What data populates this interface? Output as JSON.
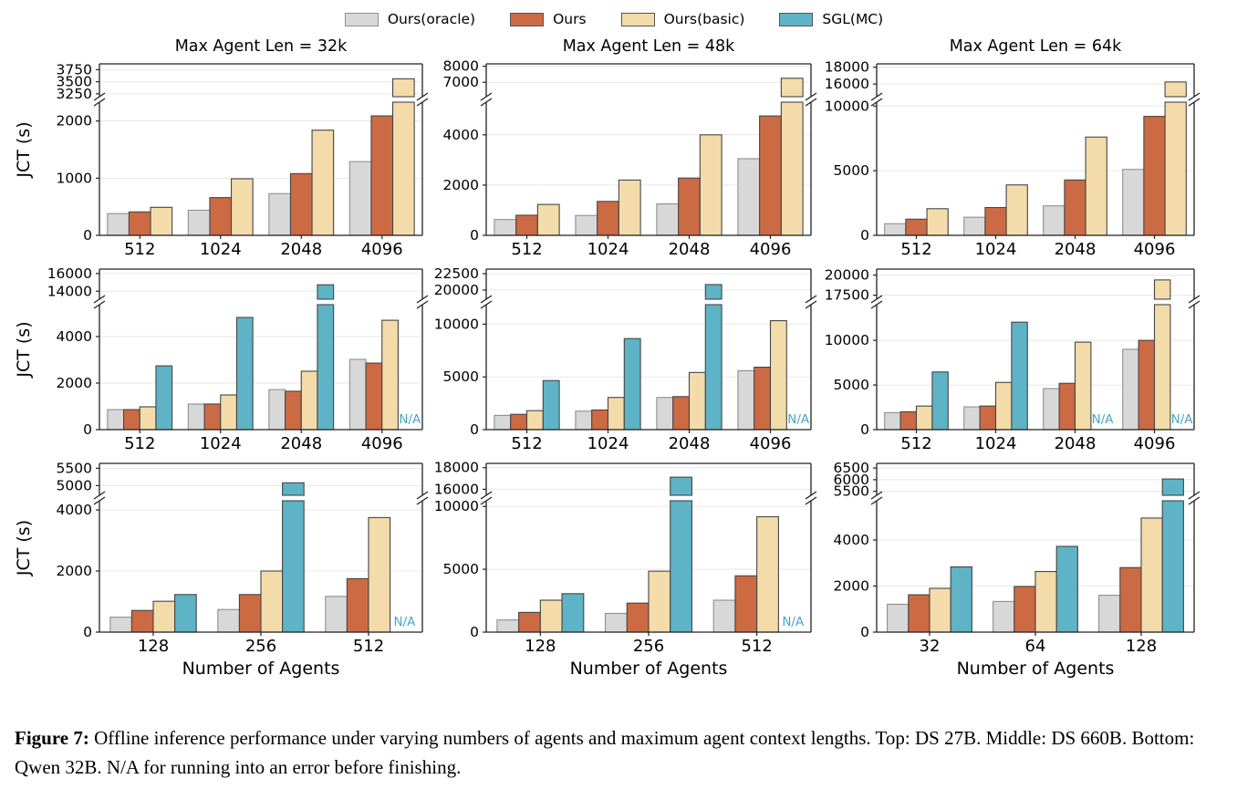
{
  "legend": [
    {
      "label": "Ours(oracle)",
      "color": "#d8d8d8",
      "edge": "#8f8f8f"
    },
    {
      "label": "Ours",
      "color": "#cc6a44",
      "edge": "#454545"
    },
    {
      "label": "Ours(basic)",
      "color": "#f4dcaa",
      "edge": "#454545"
    },
    {
      "label": "SGL(MC)",
      "color": "#5fb3c6",
      "edge": "#454545"
    }
  ],
  "na_label": "N/A",
  "na_color": "#46a8c6",
  "caption": {
    "label": "Figure 7:",
    "text": "Offline inference performance under varying numbers of agents and maximum agent context lengths. Top: DS 27B. Middle: DS 660B. Bottom: Qwen 32B. N/A for running into an error before finishing."
  },
  "chart_data": [
    {
      "type": "bar",
      "title": "Max Agent Len = 32k",
      "ylabel": "JCT (s)",
      "xlabel": "",
      "categories": [
        "512",
        "1024",
        "2048",
        "4096"
      ],
      "series": [
        {
          "name": "Ours(oracle)",
          "values": [
            380,
            440,
            730,
            1290
          ]
        },
        {
          "name": "Ours",
          "values": [
            410,
            660,
            1080,
            2090
          ]
        },
        {
          "name": "Ours(basic)",
          "values": [
            490,
            990,
            1840,
            3560
          ]
        }
      ],
      "axis": {
        "lower_max": 2330,
        "lower_ticks": [
          0,
          1000,
          2000
        ],
        "upper_min": 3190,
        "upper_max": 3870,
        "upper_ticks": [
          3250,
          3500,
          3750
        ]
      }
    },
    {
      "type": "bar",
      "title": "Max Agent Len = 48k",
      "ylabel": "",
      "xlabel": "",
      "categories": [
        "512",
        "1024",
        "2048",
        "4096"
      ],
      "series": [
        {
          "name": "Ours(oracle)",
          "values": [
            630,
            790,
            1250,
            3050
          ]
        },
        {
          "name": "Ours",
          "values": [
            800,
            1350,
            2280,
            4750
          ]
        },
        {
          "name": "Ours(basic)",
          "values": [
            1230,
            2200,
            4000,
            7250
          ]
        }
      ],
      "axis": {
        "lower_max": 5300,
        "lower_ticks": [
          0,
          2000,
          4000
        ],
        "upper_min": 6100,
        "upper_max": 8150,
        "upper_ticks": [
          7000,
          8000
        ]
      }
    },
    {
      "type": "bar",
      "title": "Max Agent Len = 64k",
      "ylabel": "",
      "xlabel": "",
      "categories": [
        "512",
        "1024",
        "2048",
        "4096"
      ],
      "series": [
        {
          "name": "Ours(oracle)",
          "values": [
            900,
            1400,
            2280,
            5100
          ]
        },
        {
          "name": "Ours",
          "values": [
            1250,
            2150,
            4280,
            9200
          ]
        },
        {
          "name": "Ours(basic)",
          "values": [
            2060,
            3900,
            7600,
            16250
          ]
        }
      ],
      "axis": {
        "lower_max": 10300,
        "lower_ticks": [
          0,
          5000,
          10000
        ],
        "upper_min": 14500,
        "upper_max": 18400,
        "upper_ticks": [
          16000,
          18000
        ]
      }
    },
    {
      "type": "bar",
      "title": "",
      "ylabel": "JCT (s)",
      "xlabel": "",
      "categories": [
        "512",
        "1024",
        "2048",
        "4096"
      ],
      "series": [
        {
          "name": "Ours(oracle)",
          "values": [
            860,
            1100,
            1720,
            3020
          ]
        },
        {
          "name": "Ours",
          "values": [
            860,
            1100,
            1650,
            2860
          ]
        },
        {
          "name": "Ours(basic)",
          "values": [
            980,
            1490,
            2510,
            4700
          ]
        },
        {
          "name": "SGL(MC)",
          "values": [
            2740,
            4820,
            14730,
            null
          ]
        }
      ],
      "axis": {
        "lower_max": 5370,
        "lower_ticks": [
          0,
          2000,
          4000
        ],
        "upper_min": 13100,
        "upper_max": 16500,
        "upper_ticks": [
          14000,
          16000
        ]
      }
    },
    {
      "type": "bar",
      "title": "",
      "ylabel": "",
      "xlabel": "",
      "categories": [
        "512",
        "1024",
        "2048",
        "4096"
      ],
      "series": [
        {
          "name": "Ours(oracle)",
          "values": [
            1350,
            1750,
            3050,
            5590
          ]
        },
        {
          "name": "Ours",
          "values": [
            1450,
            1860,
            3130,
            5920
          ]
        },
        {
          "name": "Ours(basic)",
          "values": [
            1800,
            3050,
            5420,
            10330
          ]
        },
        {
          "name": "SGL(MC)",
          "values": [
            4650,
            8630,
            20830,
            null
          ]
        }
      ],
      "axis": {
        "lower_max": 11850,
        "lower_ticks": [
          0,
          5000,
          10000
        ],
        "upper_min": 18600,
        "upper_max": 23200,
        "upper_ticks": [
          20000,
          22500
        ]
      }
    },
    {
      "type": "bar",
      "title": "",
      "ylabel": "",
      "xlabel": "",
      "categories": [
        "512",
        "1024",
        "2048",
        "4096"
      ],
      "series": [
        {
          "name": "Ours(oracle)",
          "values": [
            1900,
            2550,
            4600,
            9000
          ]
        },
        {
          "name": "Ours",
          "values": [
            2000,
            2640,
            5190,
            10000
          ]
        },
        {
          "name": "Ours(basic)",
          "values": [
            2640,
            5290,
            9800,
            19400
          ]
        },
        {
          "name": "SGL(MC)",
          "values": [
            6460,
            12040,
            null,
            null
          ]
        }
      ],
      "axis": {
        "lower_max": 14000,
        "lower_ticks": [
          0,
          5000,
          10000
        ],
        "upper_min": 17000,
        "upper_max": 20750,
        "upper_ticks": [
          17500,
          20000
        ]
      }
    },
    {
      "type": "bar",
      "title": "",
      "ylabel": "JCT (s)",
      "xlabel": "Number of Agents",
      "categories": [
        "128",
        "256",
        "512"
      ],
      "series": [
        {
          "name": "Ours(oracle)",
          "values": [
            490,
            740,
            1170
          ]
        },
        {
          "name": "Ours",
          "values": [
            710,
            1230,
            1750
          ]
        },
        {
          "name": "Ours(basic)",
          "values": [
            1010,
            2000,
            3750
          ]
        },
        {
          "name": "SGL(MC)",
          "values": [
            1230,
            5080,
            null
          ]
        }
      ],
      "axis": {
        "lower_max": 4300,
        "lower_ticks": [
          0,
          2000,
          4000
        ],
        "upper_min": 4720,
        "upper_max": 5640,
        "upper_ticks": [
          5000,
          5500
        ]
      }
    },
    {
      "type": "bar",
      "title": "",
      "ylabel": "",
      "xlabel": "Number of Agents",
      "categories": [
        "128",
        "256",
        "512"
      ],
      "series": [
        {
          "name": "Ours(oracle)",
          "values": [
            970,
            1490,
            2540
          ]
        },
        {
          "name": "Ours",
          "values": [
            1570,
            2310,
            4480
          ]
        },
        {
          "name": "Ours(basic)",
          "values": [
            2540,
            4850,
            9180
          ]
        },
        {
          "name": "SGL(MC)",
          "values": [
            3060,
            17120,
            null
          ]
        }
      ],
      "axis": {
        "lower_max": 10450,
        "lower_ticks": [
          0,
          5000,
          10000
        ],
        "upper_min": 15440,
        "upper_max": 18400,
        "upper_ticks": [
          16000,
          18000
        ]
      }
    },
    {
      "type": "bar",
      "title": "",
      "ylabel": "",
      "xlabel": "Number of Agents",
      "categories": [
        "32",
        "64",
        "128"
      ],
      "series": [
        {
          "name": "Ours(oracle)",
          "values": [
            1210,
            1330,
            1600
          ]
        },
        {
          "name": "Ours",
          "values": [
            1620,
            1980,
            2800
          ]
        },
        {
          "name": "Ours(basic)",
          "values": [
            1900,
            2630,
            4950
          ]
        },
        {
          "name": "SGL(MC)",
          "values": [
            2830,
            3720,
            6030
          ]
        }
      ],
      "axis": {
        "lower_max": 5700,
        "lower_ticks": [
          0,
          2000,
          4000
        ],
        "upper_min": 5330,
        "upper_max": 6700,
        "upper_ticks": [
          5500,
          6000,
          6500
        ]
      }
    }
  ]
}
